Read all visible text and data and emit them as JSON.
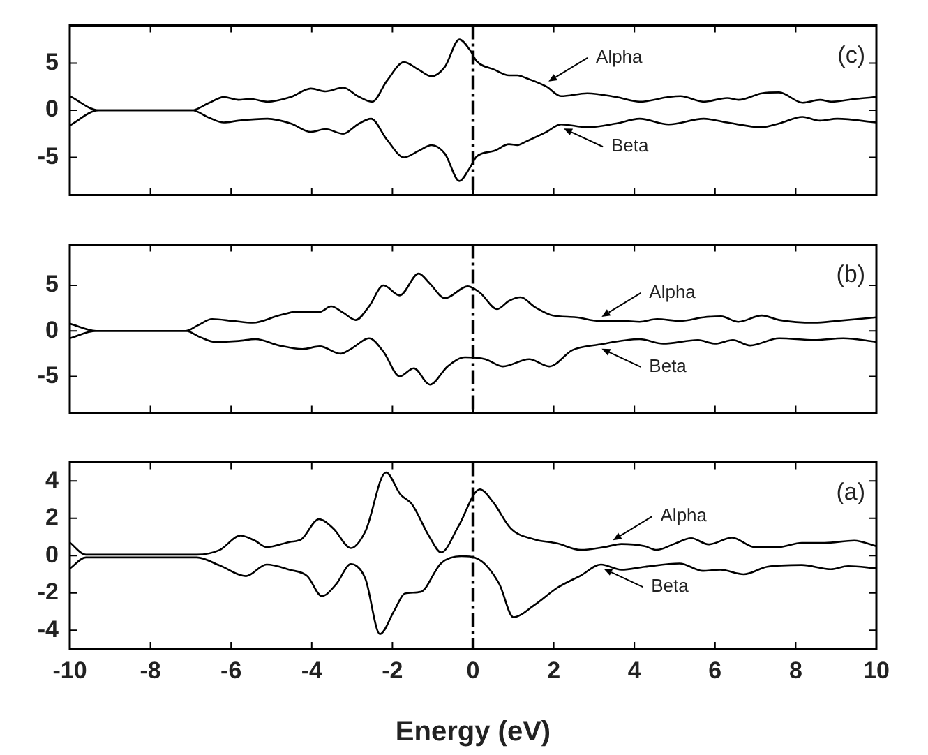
{
  "chart_data": [
    {
      "type": "line",
      "xlim": [
        -10,
        10
      ],
      "xticks": [
        -10,
        -8,
        -6,
        -4,
        -2,
        0,
        2,
        4,
        6,
        8,
        10
      ],
      "ylim": [
        -9,
        9
      ],
      "yticks": [
        -5,
        0,
        5
      ],
      "tick_labels": "y",
      "grid": false,
      "legend": false,
      "ref_lines": [
        {
          "axis": "x",
          "value": 0,
          "color": "#000000",
          "line_style": "dashed"
        }
      ],
      "annotations": [
        "(c)",
        {
          "text": "Alpha",
          "x": 1.8,
          "y": 2.6
        },
        {
          "text": "Beta",
          "x": 2.18,
          "y": -1.5
        }
      ],
      "series": [
        {
          "color": "#000000",
          "x": [
            -10,
            -9.28,
            -6.97,
            -6.54,
            -6.18,
            -5.82,
            -5.53,
            -5.1,
            -4.52,
            -4.02,
            -3.66,
            -3.22,
            -2.86,
            -2.5,
            -2.14,
            -1.71,
            -1.35,
            -1.03,
            -0.7,
            -0.34,
            -0.08,
            0.09,
            0.53,
            0.89,
            1.1,
            1.32,
            1.82,
            2.18,
            2.83,
            3.55,
            4.13,
            4.85,
            5.14,
            5.72,
            6.3,
            6.58,
            7.16,
            7.59,
            8.17,
            8.6,
            8.89,
            9.47,
            10
          ],
          "values": [
            1.5,
            0,
            0,
            0.8,
            1.4,
            1.1,
            1.2,
            0.9,
            1.4,
            2.3,
            2,
            2.4,
            1.5,
            0.9,
            3.1,
            5.1,
            4.3,
            3.6,
            4.6,
            7.5,
            6.4,
            5.2,
            4.3,
            3.7,
            3.7,
            3.4,
            2.5,
            1.5,
            1.8,
            1.4,
            0.9,
            1.4,
            1.5,
            0.9,
            1.3,
            1.1,
            1.8,
            1.9,
            0.8,
            1.1,
            0.9,
            1.2,
            1.4
          ]
        },
        {
          "color": "#000000",
          "x": [
            -10,
            -9.28,
            -6.97,
            -6.54,
            -6.18,
            -5.82,
            -5.1,
            -4.52,
            -4.02,
            -3.66,
            -3.22,
            -2.86,
            -2.53,
            -2.14,
            -1.71,
            -1.35,
            -1.03,
            -0.7,
            -0.34,
            -0.08,
            0.09,
            0.53,
            0.89,
            1.1,
            1.32,
            1.82,
            2.18,
            2.83,
            3.55,
            4.13,
            4.85,
            5.72,
            6.3,
            7.16,
            7.59,
            8.17,
            8.6,
            9.03,
            10
          ],
          "values": [
            -1.6,
            0,
            0,
            -0.8,
            -1.3,
            -1.1,
            -0.9,
            -1.4,
            -2.3,
            -2,
            -2.5,
            -1.5,
            -0.9,
            -3.1,
            -5,
            -4.3,
            -3.7,
            -4.6,
            -7.5,
            -6.1,
            -4.9,
            -4.3,
            -3.6,
            -3.7,
            -3.3,
            -2.3,
            -1.5,
            -1.8,
            -1.4,
            -0.9,
            -1.5,
            -0.9,
            -1.3,
            -1.8,
            -1.4,
            -0.7,
            -1.1,
            -0.9,
            -1.3
          ]
        }
      ]
    },
    {
      "type": "line",
      "xlim": [
        -10,
        10
      ],
      "xticks": [
        -10,
        -8,
        -6,
        -4,
        -2,
        0,
        2,
        4,
        6,
        8,
        10
      ],
      "ylim": [
        -9,
        9.5
      ],
      "yticks": [
        -5,
        0,
        5
      ],
      "tick_labels": "y",
      "grid": false,
      "legend": false,
      "ref_lines": [
        {
          "axis": "x",
          "value": 0,
          "color": "#000000",
          "line_style": "dashed"
        }
      ],
      "annotations": [
        "(b)",
        {
          "text": "Alpha",
          "x": 3.12,
          "y": 1.1
        },
        {
          "text": "Beta",
          "x": 3.12,
          "y": -1.5
        }
      ],
      "series": [
        {
          "color": "#000000",
          "x": [
            -10,
            -9.35,
            -7.12,
            -6.83,
            -6.47,
            -5.96,
            -5.46,
            -4.81,
            -4.38,
            -3.8,
            -3.52,
            -3.22,
            -2.91,
            -2.58,
            -2.22,
            -1.82,
            -1.35,
            -1.07,
            -0.7,
            -0.13,
            0.17,
            0.6,
            0.89,
            1.18,
            1.54,
            1.97,
            2.55,
            3.12,
            3.7,
            4.13,
            4.56,
            5.14,
            5.72,
            6.15,
            6.58,
            7.16,
            7.59,
            8.46,
            9.03,
            10
          ],
          "values": [
            0.8,
            0,
            0,
            0.6,
            1.3,
            1.1,
            0.9,
            1.7,
            2.1,
            2.1,
            2.7,
            2,
            1.2,
            2.7,
            5,
            3.9,
            6.3,
            5.2,
            3.6,
            4.9,
            4.2,
            2.4,
            3.3,
            3.7,
            2.6,
            1.7,
            1.5,
            1.1,
            1.1,
            1,
            1.3,
            1.1,
            1.5,
            1.6,
            1,
            1.7,
            1.2,
            0.9,
            1.1,
            1.5
          ]
        },
        {
          "color": "#000000",
          "x": [
            -10,
            -9.35,
            -7.12,
            -6.76,
            -6.4,
            -5.82,
            -5.39,
            -4.81,
            -4.23,
            -3.8,
            -3.29,
            -3,
            -2.58,
            -2.22,
            -1.82,
            -1.47,
            -1.07,
            -0.63,
            -0.2,
            0.3,
            0.74,
            1.39,
            1.89,
            2.47,
            3.12,
            4.13,
            4.71,
            5.58,
            6,
            6.44,
            6.87,
            7.59,
            8.46,
            9.18,
            10
          ],
          "values": [
            -0.8,
            0,
            0,
            -0.7,
            -1.2,
            -1.1,
            -0.9,
            -1.6,
            -2,
            -1.7,
            -2.5,
            -1.9,
            -0.8,
            -2.3,
            -5,
            -4.1,
            -5.9,
            -3.9,
            -2.9,
            -3.1,
            -3.9,
            -3.1,
            -3.9,
            -2.1,
            -1.5,
            -0.9,
            -1.4,
            -1,
            -1.4,
            -1,
            -1.6,
            -0.8,
            -1,
            -0.8,
            -1.2
          ]
        }
      ]
    },
    {
      "type": "line",
      "xlim": [
        -10,
        10
      ],
      "xticks": [
        -10,
        -8,
        -6,
        -4,
        -2,
        0,
        2,
        4,
        6,
        8,
        10
      ],
      "ylim": [
        -5,
        5
      ],
      "yticks": [
        -4,
        -2,
        0,
        2,
        4
      ],
      "xlabel": "Energy (eV)",
      "grid": false,
      "legend": false,
      "ref_lines": [
        {
          "axis": "x",
          "value": 0,
          "color": "#000000",
          "line_style": "dashed"
        }
      ],
      "annotations": [
        "(a)",
        {
          "text": "Alpha",
          "x": 3.4,
          "y": 0.6
        },
        {
          "text": "Beta",
          "x": 3.17,
          "y": -0.48
        }
      ],
      "series": [
        {
          "color": "#000000",
          "x": [
            -10,
            -9.6,
            -6.85,
            -6.28,
            -5.77,
            -5.41,
            -5.12,
            -4.55,
            -4.26,
            -3.82,
            -3.46,
            -3.03,
            -2.67,
            -2.16,
            -1.8,
            -1.52,
            -1.08,
            -0.79,
            -0.36,
            0.17,
            0.5,
            0.94,
            1.52,
            2.09,
            2.67,
            3.25,
            3.68,
            4.26,
            4.55,
            4.98,
            5.41,
            5.84,
            6.42,
            6.99,
            7.57,
            8.15,
            8.72,
            9.45,
            10
          ],
          "values": [
            0.7,
            0.05,
            0.05,
            0.3,
            1.07,
            0.8,
            0.45,
            0.73,
            0.87,
            1.95,
            1.44,
            0.4,
            1.3,
            4.45,
            3.27,
            2.76,
            1,
            0.17,
            1.58,
            3.55,
            2.85,
            1.44,
            0.87,
            0.65,
            0.3,
            0.45,
            0.62,
            0.5,
            0.3,
            0.62,
            0.93,
            0.6,
            0.96,
            0.45,
            0.45,
            0.68,
            0.68,
            0.8,
            0.5
          ]
        },
        {
          "color": "#000000",
          "x": [
            -10,
            -9.6,
            -6.85,
            -6.28,
            -5.63,
            -5.12,
            -4.55,
            -4.11,
            -3.75,
            -3.39,
            -3.03,
            -2.67,
            -2.31,
            -1.95,
            -1.69,
            -1.3,
            -0.79,
            -0.29,
            0.14,
            0.65,
            1,
            1.52,
            2.09,
            2.67,
            3.17,
            3.68,
            4.26,
            5.12,
            5.7,
            6.13,
            6.71,
            7.29,
            8.15,
            8.87,
            9.3,
            10
          ],
          "values": [
            -0.7,
            -0.1,
            -0.1,
            -0.53,
            -1.1,
            -0.48,
            -0.76,
            -1.1,
            -2.17,
            -1.52,
            -0.45,
            -1.24,
            -4.2,
            -2.93,
            -2.03,
            -1.94,
            -0.4,
            -0.03,
            -0.2,
            -1.52,
            -3.3,
            -2.65,
            -1.72,
            -1.07,
            -0.48,
            -0.76,
            -0.6,
            -0.42,
            -0.82,
            -0.76,
            -1,
            -0.6,
            -0.5,
            -0.73,
            -0.56,
            -0.68
          ]
        }
      ]
    }
  ]
}
